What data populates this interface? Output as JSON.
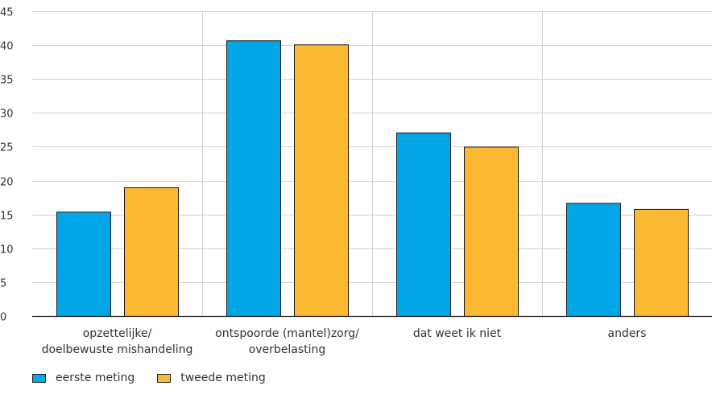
{
  "chart_data": {
    "type": "bar",
    "categories": [
      [
        "opzettelijke/",
        "doelbewuste mishandeling"
      ],
      [
        "ontspoorde (mantel)zorg/",
        "overbelasting"
      ],
      [
        "dat weet ik niet"
      ],
      [
        "anders"
      ]
    ],
    "series": [
      {
        "name": "eerste meting",
        "color": "#00a6e6",
        "values": [
          15.4,
          40.7,
          27.1,
          16.7
        ]
      },
      {
        "name": "tweede meting",
        "color": "#fbb832",
        "values": [
          19.0,
          40.1,
          25.0,
          15.8
        ]
      }
    ],
    "ylim": [
      0,
      45
    ],
    "yticks": [
      0,
      5,
      10,
      15,
      20,
      25,
      30,
      35,
      40,
      45
    ],
    "grid": true,
    "legend_position": "bottom-left"
  }
}
